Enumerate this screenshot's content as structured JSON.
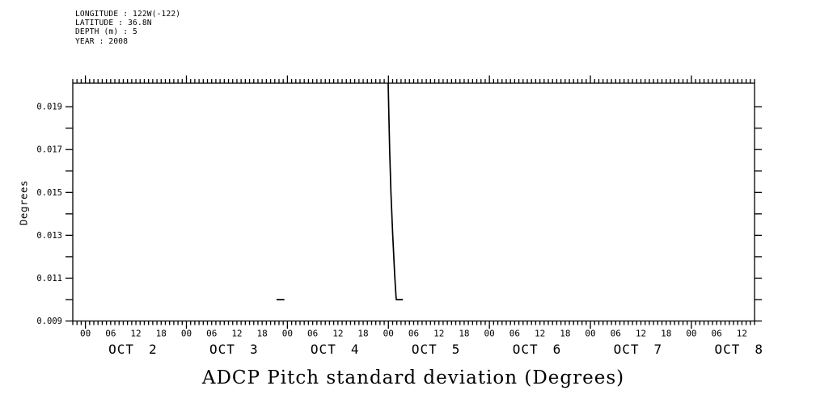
{
  "header": {
    "lines": [
      "LONGITUDE : 122W(-122)",
      "LATITUDE : 36.8N",
      "DEPTH (m) : 5",
      "YEAR : 2008"
    ]
  },
  "title": "ADCP Pitch standard deviation (Degrees)",
  "y_axis": {
    "label": "Degrees",
    "range": [
      0.009,
      0.0201
    ],
    "tick_step": 0.001,
    "tick_values": [
      0.009,
      0.01,
      0.011,
      0.012,
      0.013,
      0.014,
      0.015,
      0.016,
      0.017,
      0.018,
      0.019
    ],
    "tick_labels": [
      {
        "v": 0.019,
        "text": "0.019"
      },
      {
        "v": 0.017,
        "text": "0.017"
      },
      {
        "v": 0.015,
        "text": "0.015"
      },
      {
        "v": 0.013,
        "text": "0.013"
      },
      {
        "v": 0.011,
        "text": "0.011"
      },
      {
        "v": 0.009,
        "text": "0.009"
      }
    ]
  },
  "x_axis": {
    "range_hours": [
      -3,
      159
    ],
    "minor_tick_hours": 1,
    "major_tick_every_hours": 24,
    "hour_labels": [
      {
        "t": 0,
        "text": "00"
      },
      {
        "t": 6,
        "text": "06"
      },
      {
        "t": 12,
        "text": "12"
      },
      {
        "t": 18,
        "text": "18"
      },
      {
        "t": 24,
        "text": "00"
      },
      {
        "t": 30,
        "text": "06"
      },
      {
        "t": 36,
        "text": "12"
      },
      {
        "t": 42,
        "text": "18"
      },
      {
        "t": 48,
        "text": "00"
      },
      {
        "t": 54,
        "text": "06"
      },
      {
        "t": 60,
        "text": "12"
      },
      {
        "t": 66,
        "text": "18"
      },
      {
        "t": 72,
        "text": "00"
      },
      {
        "t": 78,
        "text": "06"
      },
      {
        "t": 84,
        "text": "12"
      },
      {
        "t": 90,
        "text": "18"
      },
      {
        "t": 96,
        "text": "00"
      },
      {
        "t": 102,
        "text": "06"
      },
      {
        "t": 108,
        "text": "12"
      },
      {
        "t": 114,
        "text": "18"
      },
      {
        "t": 120,
        "text": "00"
      },
      {
        "t": 126,
        "text": "06"
      },
      {
        "t": 132,
        "text": "12"
      },
      {
        "t": 138,
        "text": "18"
      },
      {
        "t": 144,
        "text": "00"
      },
      {
        "t": 150,
        "text": "06"
      },
      {
        "t": 156,
        "text": "12"
      }
    ],
    "date_labels": [
      {
        "t": 12,
        "month": "OCT",
        "day": "2"
      },
      {
        "t": 36,
        "month": "OCT",
        "day": "3"
      },
      {
        "t": 60,
        "month": "OCT",
        "day": "4"
      },
      {
        "t": 84,
        "month": "OCT",
        "day": "5"
      },
      {
        "t": 108,
        "month": "OCT",
        "day": "6"
      },
      {
        "t": 132,
        "month": "OCT",
        "day": "7"
      },
      {
        "t": 156,
        "month": "OCT",
        "day": "8"
      }
    ]
  },
  "chart_data": {
    "type": "line",
    "title": "ADCP Pitch standard deviation (Degrees)",
    "ylabel": "Degrees",
    "ylim": [
      0.009,
      0.0201
    ],
    "x_unit": "hours since 2008-10-02 00:00",
    "xlim_hours": [
      -3,
      159
    ],
    "x_dates": [
      "OCT 2",
      "OCT 3",
      "OCT 4",
      "OCT 5",
      "OCT 6",
      "OCT 7",
      "OCT 8"
    ],
    "grid": false,
    "line_color": "#000000",
    "series": [
      {
        "name": "ADCP pitch standard deviation",
        "segments": [
          [
            [
              45.4,
              0.01
            ],
            [
              47.3,
              0.01
            ]
          ],
          [
            [
              71.95,
              0.0201
            ],
            [
              72.1,
              0.0187
            ],
            [
              72.3,
              0.017
            ],
            [
              72.6,
              0.015
            ],
            [
              73.0,
              0.0131
            ],
            [
              73.5,
              0.0111
            ],
            [
              73.8,
              0.0102
            ],
            [
              73.87,
              0.01
            ],
            [
              75.45,
              0.01
            ]
          ]
        ]
      }
    ],
    "notes": "Narrow spike starting Oct 5 00:00 descends from plot top (>=0.0201, clipped) to 0.010 by ~02:30; short baseline segment at 0.010 on Oct 3 ~21:30-23:30. Interior otherwise empty (values off-scale)."
  }
}
